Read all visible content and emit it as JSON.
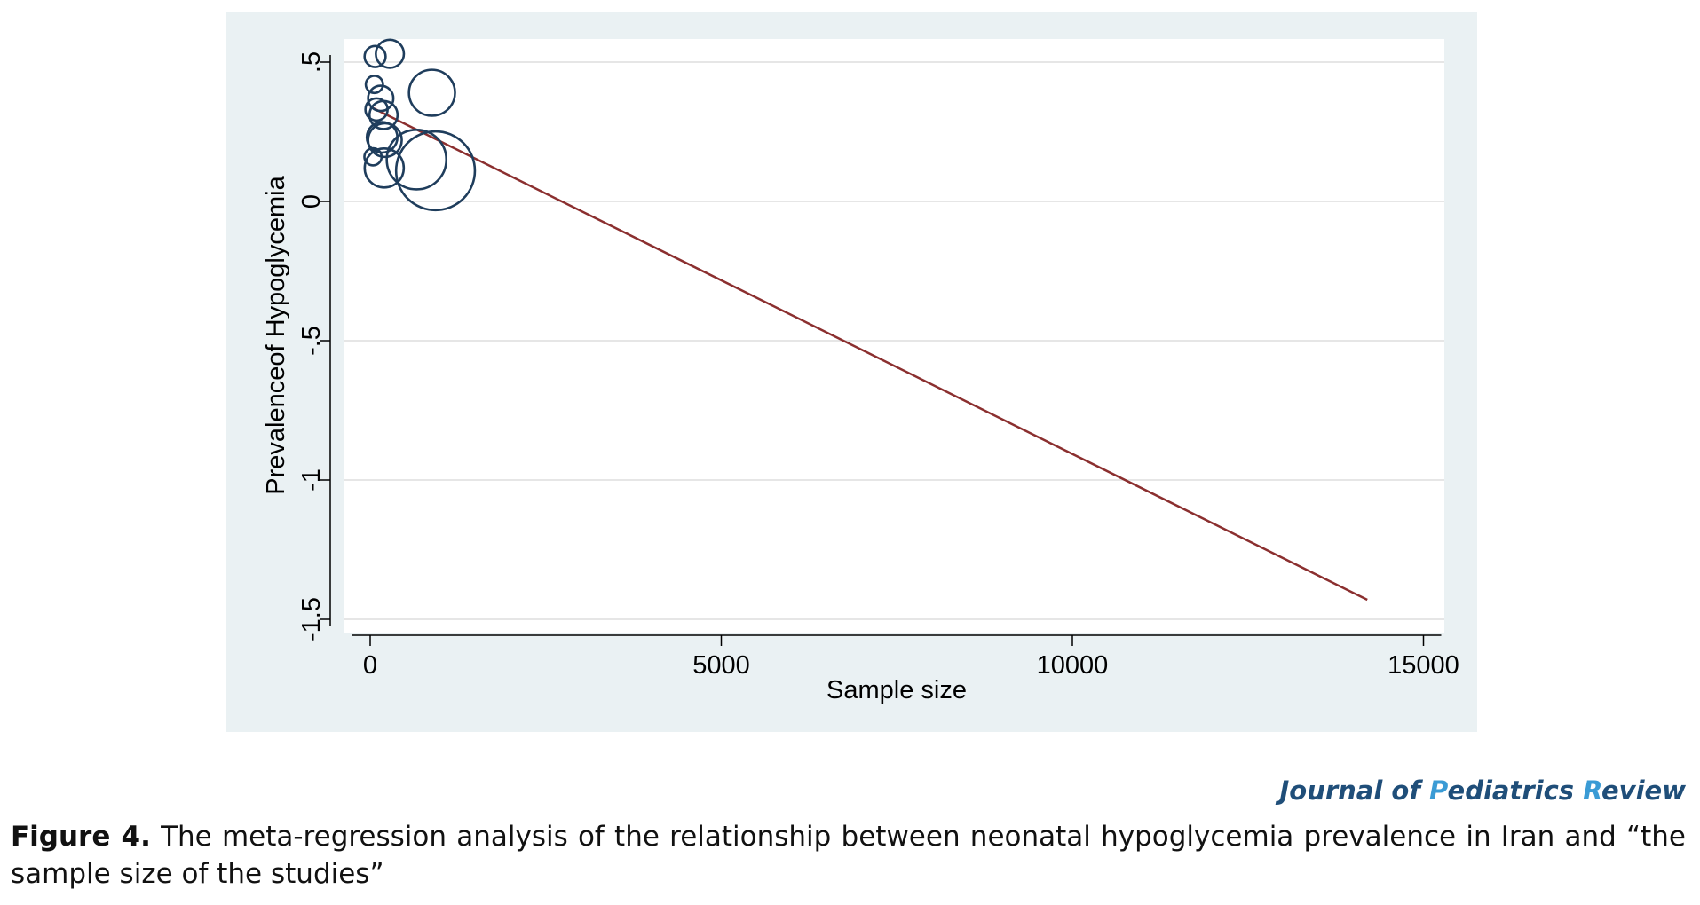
{
  "journal": {
    "name_parts": [
      "Journal of ",
      "P",
      "ediatrics ",
      "R",
      "eview"
    ]
  },
  "caption": {
    "label": "Figure 4.",
    "text": " The meta-regression analysis of the relationship between neonatal hypoglycemia prevalence in Iran and “the sample size of the studies”"
  },
  "colors": {
    "panel_background": "#eaf1f3",
    "plot_background": "#ffffff",
    "marker": "#1f3d5c",
    "fit_line": "#8b2f2f",
    "journal_dark": "#1f4e79",
    "journal_accent": "#3a9bd5"
  },
  "chart_data": {
    "type": "scatter",
    "title": "",
    "xlabel": "Sample size",
    "ylabel": "Prevalenceof Hypoglycemia",
    "xlim": [
      -300,
      15300
    ],
    "ylim": [
      -1.55,
      0.58
    ],
    "x_ticks": [
      0,
      5000,
      10000,
      15000
    ],
    "x_tick_labels": [
      "0",
      "5000",
      "10000",
      "15000"
    ],
    "y_ticks": [
      -1.5,
      -1,
      -0.5,
      0,
      0.5
    ],
    "y_tick_labels": [
      "-1.5",
      "-1",
      "-.5",
      "0",
      ".5"
    ],
    "grid": true,
    "marker_style": "hollow circles sized by study weight",
    "points": [
      {
        "x": 70,
        "y": 0.52,
        "weight": 0.9
      },
      {
        "x": 280,
        "y": 0.53,
        "weight": 1.6
      },
      {
        "x": 60,
        "y": 0.42,
        "weight": 0.6
      },
      {
        "x": 880,
        "y": 0.39,
        "weight": 4.3
      },
      {
        "x": 150,
        "y": 0.37,
        "weight": 1.3
      },
      {
        "x": 90,
        "y": 0.33,
        "weight": 1.0
      },
      {
        "x": 190,
        "y": 0.31,
        "weight": 1.6
      },
      {
        "x": 170,
        "y": 0.23,
        "weight": 1.9
      },
      {
        "x": 210,
        "y": 0.22,
        "weight": 2.3
      },
      {
        "x": 40,
        "y": 0.16,
        "weight": 0.6
      },
      {
        "x": 660,
        "y": 0.15,
        "weight": 7.2
      },
      {
        "x": 200,
        "y": 0.12,
        "weight": 3.1
      },
      {
        "x": 930,
        "y": 0.11,
        "weight": 12.6
      }
    ],
    "fit_line": {
      "x": [
        0,
        14200
      ],
      "y": [
        0.34,
        -1.43
      ]
    }
  }
}
